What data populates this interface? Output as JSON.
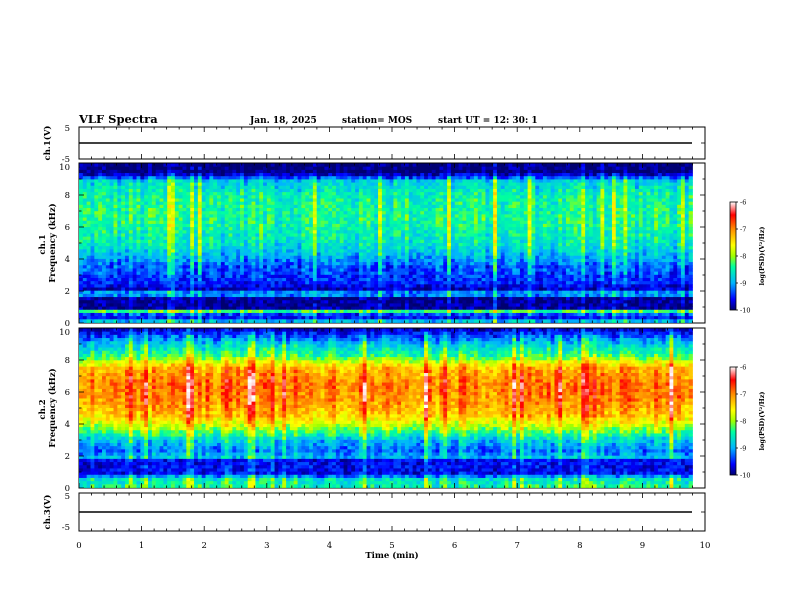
{
  "header": {
    "title": "VLF Spectra",
    "date": "Jan. 18, 2025",
    "station": "station= MOS",
    "start": "start  UT  =   12: 30: 1"
  },
  "colors": {
    "scale": [
      "#000070",
      "#0000ff",
      "#00b4ff",
      "#00ffa0",
      "#a0ff00",
      "#ffff00",
      "#ff8c00",
      "#ff0000",
      "#ffffff"
    ]
  },
  "chart_data": [
    {
      "id": "ch1-waveform",
      "type": "line",
      "ylabel": "ch.1(V)",
      "ylim": [
        -5,
        5
      ],
      "ytick_labels": [
        "5",
        "-5"
      ],
      "xlim": [
        0,
        10
      ],
      "trace_level": 0,
      "x": [
        0,
        9.8
      ],
      "y": [
        0,
        0
      ]
    },
    {
      "id": "ch1-spectrogram",
      "type": "heatmap",
      "ylabel": "ch.1\nFrequency (kHz)",
      "ylim": [
        0,
        10
      ],
      "ytick_labels": [
        "0",
        "2",
        "4",
        "6",
        "8",
        "10"
      ],
      "xlim": [
        0,
        10
      ],
      "data_end_min": 9.8,
      "value_range": [
        -10,
        -6
      ],
      "band_profile": [
        {
          "f": 0.0,
          "v": -8.6
        },
        {
          "f": 0.4,
          "v": -9.9
        },
        {
          "f": 0.7,
          "v": -8.3
        },
        {
          "f": 0.9,
          "v": -9.9
        },
        {
          "f": 1.6,
          "v": -9.9
        },
        {
          "f": 1.8,
          "v": -8.4
        },
        {
          "f": 2.0,
          "v": -9.8
        },
        {
          "f": 2.5,
          "v": -9.5
        },
        {
          "f": 3.5,
          "v": -9.3
        },
        {
          "f": 4.3,
          "v": -8.9
        },
        {
          "f": 5.0,
          "v": -8.6
        },
        {
          "f": 6.5,
          "v": -8.4
        },
        {
          "f": 8.0,
          "v": -8.5
        },
        {
          "f": 8.9,
          "v": -8.8
        },
        {
          "f": 9.2,
          "v": -9.6
        },
        {
          "f": 9.5,
          "v": -10.0
        },
        {
          "f": 10.0,
          "v": -10.0
        }
      ]
    },
    {
      "id": "ch1-colorbar",
      "type": "heatmap",
      "label": "log(PSD)(V²/Hz)",
      "ticks": [
        -10,
        -9,
        -8,
        -7,
        -6
      ],
      "tick_labels": [
        "-10",
        "-9",
        "-8",
        "-7",
        "-6"
      ]
    },
    {
      "id": "ch2-spectrogram",
      "type": "heatmap",
      "ylabel": "ch.2\nFrequency (kHz)",
      "ylim": [
        0,
        10
      ],
      "ytick_labels": [
        "0",
        "2",
        "4",
        "6",
        "8",
        "10"
      ],
      "xlim": [
        0,
        10
      ],
      "data_end_min": 9.8,
      "value_range": [
        -10,
        -6
      ],
      "band_profile": [
        {
          "f": 0.0,
          "v": -8.4
        },
        {
          "f": 0.5,
          "v": -8.6
        },
        {
          "f": 0.9,
          "v": -9.6
        },
        {
          "f": 1.7,
          "v": -9.6
        },
        {
          "f": 1.9,
          "v": -8.9
        },
        {
          "f": 2.3,
          "v": -9.2
        },
        {
          "f": 3.0,
          "v": -8.8
        },
        {
          "f": 3.7,
          "v": -8.0
        },
        {
          "f": 4.5,
          "v": -7.3
        },
        {
          "f": 5.5,
          "v": -7.0
        },
        {
          "f": 6.5,
          "v": -6.9
        },
        {
          "f": 7.5,
          "v": -7.2
        },
        {
          "f": 8.3,
          "v": -8.3
        },
        {
          "f": 9.0,
          "v": -8.8
        },
        {
          "f": 9.5,
          "v": -9.3
        },
        {
          "f": 10.0,
          "v": -9.8
        }
      ]
    },
    {
      "id": "ch2-colorbar",
      "type": "heatmap",
      "label": "log(PSD)(V²/Hz)",
      "ticks": [
        -10,
        -9,
        -8,
        -7,
        -6
      ],
      "tick_labels": [
        "-10",
        "-9",
        "-8",
        "-7",
        "-6"
      ]
    },
    {
      "id": "ch3-waveform",
      "type": "line",
      "ylabel": "ch.3(V)",
      "ylim": [
        -5,
        5
      ],
      "ytick_labels": [
        "5",
        "-5"
      ],
      "xlim": [
        0,
        10
      ],
      "trace_level": 0,
      "x": [
        0,
        9.8
      ],
      "y": [
        0,
        0
      ]
    },
    {
      "id": "time-axis",
      "type": "line",
      "xlabel": "Time (min)",
      "xlim": [
        0,
        10
      ],
      "xtick_labels": [
        "0",
        "1",
        "2",
        "3",
        "4",
        "5",
        "6",
        "7",
        "8",
        "9",
        "10"
      ]
    }
  ]
}
